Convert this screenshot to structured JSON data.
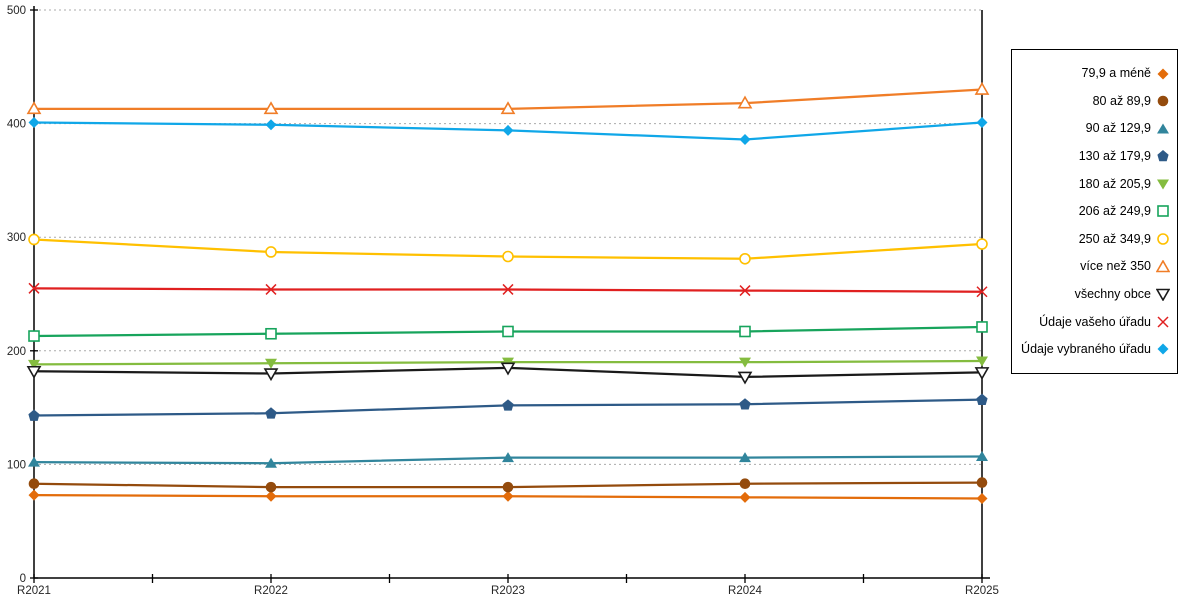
{
  "chart_data": {
    "type": "line",
    "title": "",
    "xlabel": "",
    "ylabel": "",
    "categories": [
      "R2021",
      "R2022",
      "R2023",
      "R2024",
      "R2025"
    ],
    "ylim": [
      0,
      500
    ],
    "yticks": [
      0,
      100,
      200,
      300,
      400,
      500
    ],
    "grid": "horizontal-dashed",
    "legend_position": "right-outside-box",
    "axis_color": "#000000",
    "gridline_color": "#ababab",
    "tick_label_color": "#262626",
    "series": [
      {
        "name": "79,9 a méně",
        "marker": "diamond-filled",
        "color": "#E36C0A",
        "values": [
          73,
          72,
          72,
          71,
          70
        ]
      },
      {
        "name": "80 až 89,9",
        "marker": "circle-filled",
        "color": "#944B0D",
        "values": [
          83,
          80,
          80,
          83,
          84
        ]
      },
      {
        "name": "90 až 129,9",
        "marker": "triangle-up-filled",
        "color": "#31859C",
        "values": [
          102,
          101,
          106,
          106,
          107
        ]
      },
      {
        "name": "130 až 179,9",
        "marker": "pentagon-filled",
        "color": "#2E5A87",
        "values": [
          143,
          145,
          152,
          153,
          157
        ]
      },
      {
        "name": "180 až 205,9",
        "marker": "triangle-down-filled",
        "color": "#84BC3F",
        "values": [
          188,
          189,
          190,
          190,
          191
        ]
      },
      {
        "name": "206 až 249,9",
        "marker": "square-open",
        "color": "#17A45C",
        "values": [
          213,
          215,
          217,
          217,
          221
        ]
      },
      {
        "name": "250 až 349,9",
        "marker": "circle-open",
        "color": "#FFC000",
        "values": [
          298,
          287,
          283,
          281,
          294
        ]
      },
      {
        "name": "více než 350",
        "marker": "triangle-up-open",
        "color": "#F07D27",
        "values": [
          413,
          413,
          413,
          418,
          430
        ]
      },
      {
        "name": "všechny obce",
        "marker": "triangle-down-open",
        "color": "#1A1A1A",
        "values": [
          182,
          180,
          185,
          177,
          181
        ]
      },
      {
        "name": "Údaje vašeho úřadu",
        "marker": "x",
        "color": "#E02020",
        "values": [
          255,
          254,
          254,
          253,
          252
        ]
      },
      {
        "name": "Údaje vybraného úřadu",
        "marker": "diamond-filled",
        "color": "#10A7E8",
        "values": [
          401,
          399,
          394,
          386,
          401
        ]
      }
    ]
  }
}
